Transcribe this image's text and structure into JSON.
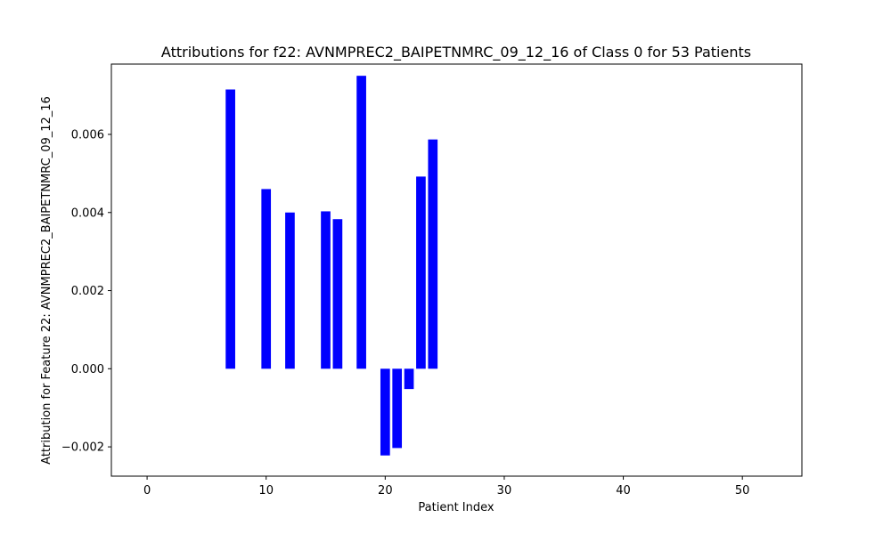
{
  "chart_data": {
    "type": "bar",
    "title": "Attributions for f22: AVNMPREC2_BAIPETNMRC_09_12_16 of Class 0 for 53 Patients",
    "xlabel": "Patient Index",
    "ylabel": "Attribution for Feature 22: AVNMPREC2_BAIPETNMRC_09_12_16",
    "xlim": [
      -3,
      55
    ],
    "ylim": [
      -0.00275,
      0.0078
    ],
    "x_ticks": [
      0,
      10,
      20,
      30,
      40,
      50
    ],
    "y_ticks": [
      -0.002,
      0.0,
      0.002,
      0.004,
      0.006
    ],
    "y_tick_labels": [
      "−0.002",
      "0.000",
      "0.002",
      "0.004",
      "0.006"
    ],
    "bar_color": "#0000ff",
    "grid": false,
    "x": [
      0,
      1,
      2,
      3,
      4,
      5,
      6,
      7,
      8,
      9,
      10,
      11,
      12,
      13,
      14,
      15,
      16,
      17,
      18,
      19,
      20,
      21,
      22,
      23,
      24,
      25,
      26,
      27,
      28,
      29,
      30,
      31,
      32,
      33,
      34,
      35,
      36,
      37,
      38,
      39,
      40,
      41,
      42,
      43,
      44,
      45,
      46,
      47,
      48,
      49,
      50,
      51,
      52
    ],
    "values": [
      0,
      0,
      0,
      0,
      0,
      0,
      0,
      0.00715,
      0,
      0,
      0.0046,
      0,
      0.004,
      0,
      0,
      0.00403,
      0.00383,
      0,
      0.0075,
      0,
      -0.00222,
      -0.00203,
      -0.00052,
      0.00492,
      0.00587,
      0,
      0,
      0,
      0,
      0,
      0,
      0,
      0,
      0,
      0,
      0,
      0,
      0,
      0,
      0,
      0,
      0,
      0,
      0,
      0,
      0,
      0,
      0,
      0,
      0,
      0,
      0,
      0
    ]
  }
}
